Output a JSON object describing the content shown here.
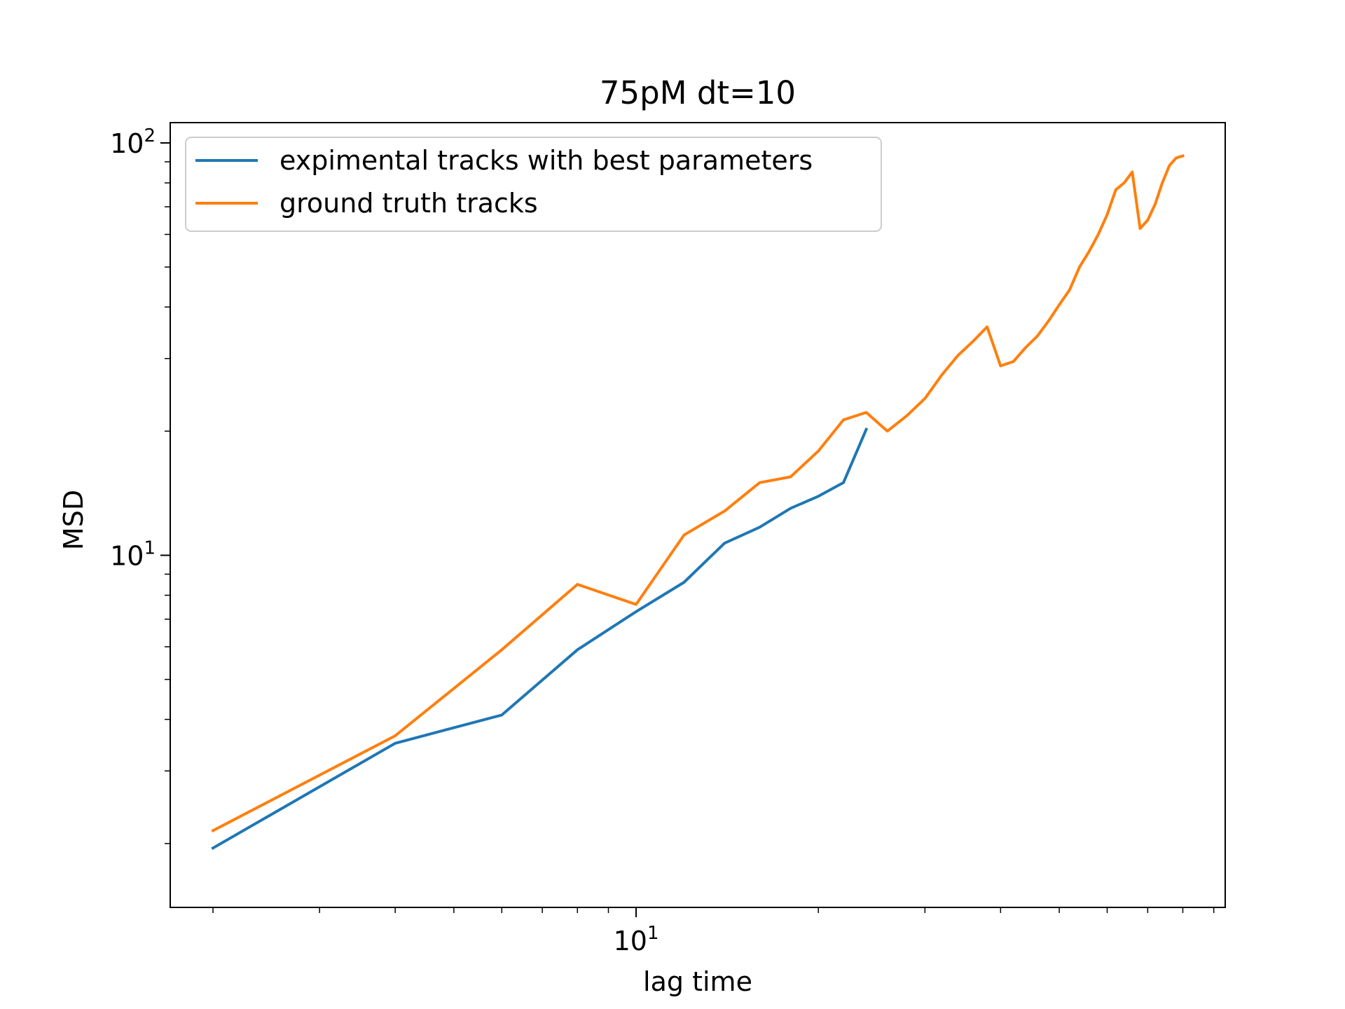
{
  "chart_data": {
    "type": "line",
    "title": "75pM dt=10",
    "xlabel": "lag time",
    "ylabel": "MSD",
    "xscale": "log",
    "yscale": "log",
    "xlim": [
      1.7,
      94
    ],
    "ylim": [
      1.4,
      112
    ],
    "grid": false,
    "legend_position": "top-left",
    "x_ticks": [
      {
        "base": "10",
        "exp": "1",
        "value": 10
      }
    ],
    "y_ticks": [
      {
        "base": "10",
        "exp": "1",
        "value": 10
      },
      {
        "base": "10",
        "exp": "2",
        "value": 100
      }
    ],
    "series": [
      {
        "name": "expimental tracks with best parameters",
        "color": "#1f77b4",
        "x": [
          2,
          4,
          6,
          8,
          10,
          12,
          14,
          16,
          18,
          20,
          22,
          24
        ],
        "y": [
          1.95,
          3.5,
          4.1,
          5.9,
          7.3,
          8.6,
          10.7,
          11.7,
          13.0,
          13.9,
          15.0,
          20.2
        ]
      },
      {
        "name": "ground truth tracks",
        "color": "#ff7f0e",
        "x": [
          2,
          4,
          6,
          8,
          10,
          12,
          14,
          16,
          18,
          20,
          22,
          24,
          26,
          28,
          30,
          32,
          34,
          36,
          38,
          40,
          42,
          44,
          46,
          48,
          50,
          52,
          54,
          56,
          58,
          60,
          62,
          64,
          66,
          68,
          70,
          72,
          74,
          76,
          78,
          80
        ],
        "y": [
          2.15,
          3.65,
          5.9,
          8.5,
          7.6,
          11.2,
          12.8,
          15.0,
          15.5,
          17.9,
          21.3,
          22.2,
          20.0,
          21.8,
          24.0,
          27.4,
          30.5,
          33.0,
          35.8,
          28.8,
          29.5,
          31.9,
          34.0,
          37.0,
          40.5,
          44.0,
          50.0,
          54.5,
          60.0,
          67.0,
          77.0,
          80.0,
          85.0,
          62.0,
          65.0,
          71.0,
          80.0,
          88.0,
          92.0,
          93.0
        ]
      }
    ]
  }
}
